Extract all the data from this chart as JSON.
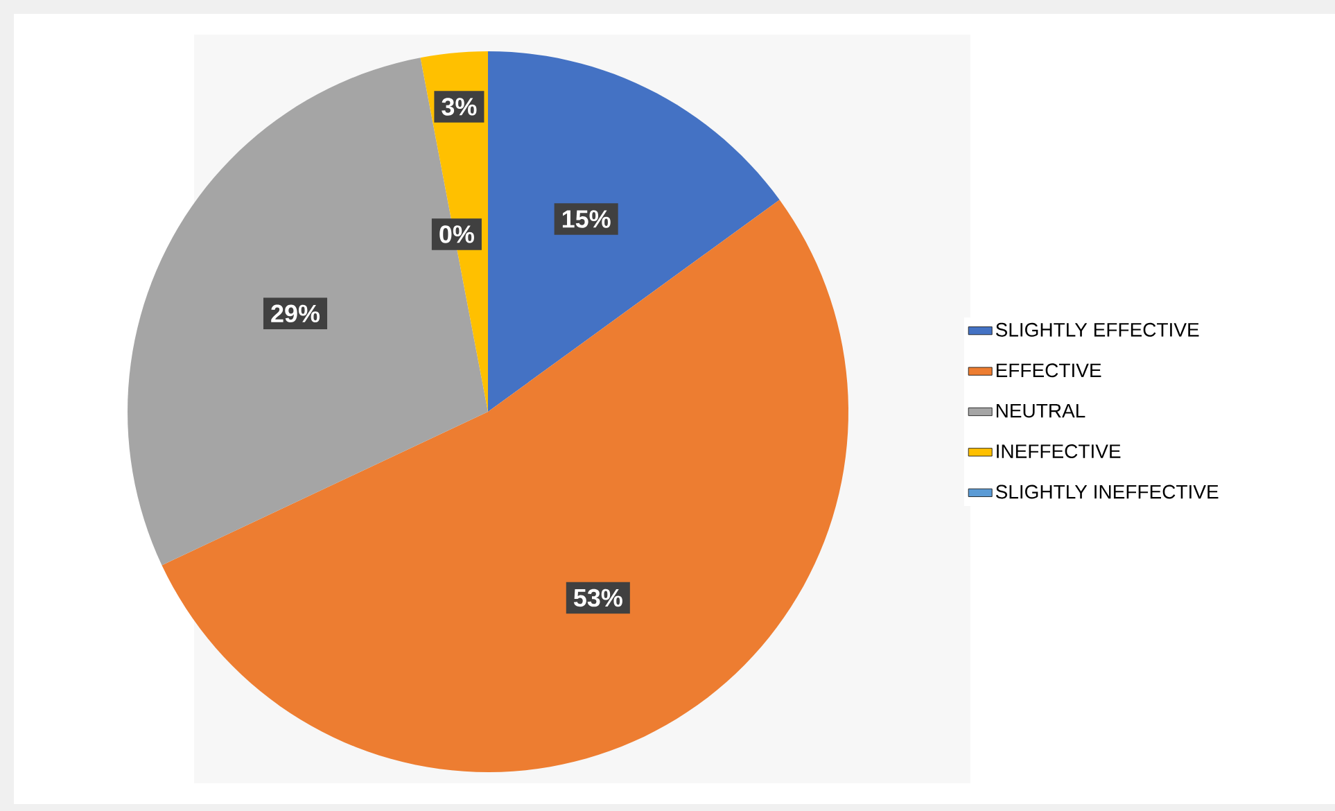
{
  "chart_data": {
    "type": "pie",
    "categories": [
      "SLIGHTLY EFFECTIVE",
      "EFFECTIVE",
      "NEUTRAL",
      "INEFFECTIVE",
      "SLIGHTLY INEFFECTIVE"
    ],
    "values": [
      15,
      53,
      29,
      3,
      0
    ],
    "colors": [
      "#4472c4",
      "#ed7d31",
      "#a5a5a5",
      "#ffc000",
      "#5b9bd5"
    ],
    "value_labels": [
      "15%",
      "53%",
      "29%",
      "3%",
      "0%"
    ],
    "legend": "right"
  }
}
